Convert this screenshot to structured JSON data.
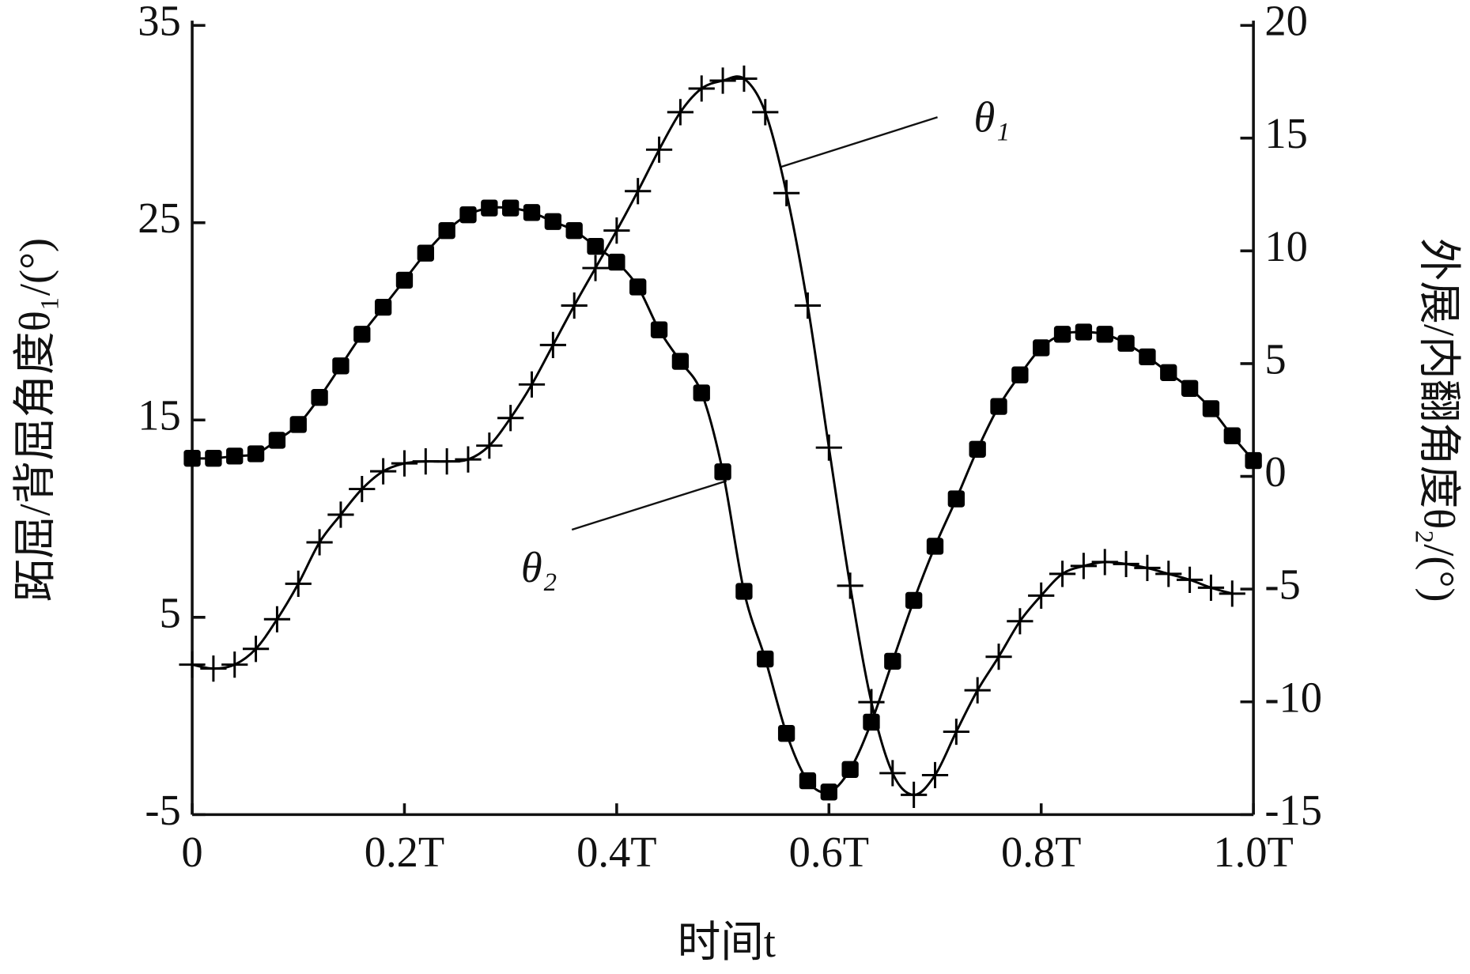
{
  "chart_data": {
    "type": "line",
    "x_label": "时间t",
    "y_label": "跖屈/背屈角度θ₁/(°)",
    "y2_label": "外展/内翻角度θ₂/(°)",
    "x": [
      0,
      0.02,
      0.04,
      0.06,
      0.08,
      0.1,
      0.12,
      0.14,
      0.16,
      0.18,
      0.2,
      0.22,
      0.24,
      0.26,
      0.28,
      0.3,
      0.32,
      0.34,
      0.36,
      0.38,
      0.4,
      0.42,
      0.44,
      0.46,
      0.48,
      0.5,
      0.52,
      0.54,
      0.56,
      0.58,
      0.6,
      0.62,
      0.64,
      0.66,
      0.68,
      0.7,
      0.72,
      0.74,
      0.76,
      0.78,
      0.8,
      0.82,
      0.84,
      0.86,
      0.88,
      0.9,
      0.92,
      0.94,
      0.96,
      0.98,
      1.0
    ],
    "xlim": [
      0,
      1.0
    ],
    "xticks": [
      0,
      {
        "value": 0.2,
        "label": "0.2T"
      },
      {
        "value": 0.4,
        "label": "0.4T"
      },
      {
        "value": 0.6,
        "label": "0.6T"
      },
      {
        "value": 0.8,
        "label": "0.8T"
      },
      {
        "value": 1.0,
        "label": "1.0T"
      }
    ],
    "ylim": [
      -5,
      35
    ],
    "yticks": [
      -5,
      5,
      15,
      25,
      35
    ],
    "y2lim": [
      -15,
      20
    ],
    "y2ticks": [
      -15,
      -10,
      -5,
      0,
      5,
      10,
      15,
      20
    ],
    "series": [
      {
        "name": "θ₁",
        "color": "#000000",
        "marker": "plus",
        "values": [
          2.6,
          2.4,
          2.6,
          3.4,
          4.9,
          6.7,
          8.8,
          10.2,
          11.5,
          12.4,
          12.8,
          12.9,
          12.9,
          13.0,
          13.7,
          15.1,
          16.8,
          18.8,
          20.8,
          22.7,
          24.6,
          26.6,
          28.7,
          30.6,
          31.8,
          32.2,
          32.3,
          30.6,
          26.5,
          20.8,
          13.6,
          6.6,
          0.7,
          -2.9,
          -4.0,
          -3.0,
          -0.8,
          1.3,
          3.0,
          4.8,
          6.1,
          7.2,
          7.6,
          7.8,
          7.7,
          7.5,
          7.2,
          6.9,
          6.5,
          6.2,
          null
        ]
      },
      {
        "name": "θ₂",
        "color": "#000000",
        "marker": "square",
        "axis": "y2",
        "values": [
          0.8,
          0.8,
          0.9,
          1.0,
          1.6,
          2.3,
          3.5,
          4.9,
          6.3,
          7.5,
          8.7,
          9.9,
          10.9,
          11.6,
          11.9,
          11.9,
          11.7,
          11.3,
          10.9,
          10.2,
          9.5,
          8.4,
          6.5,
          5.1,
          3.7,
          0.2,
          -5.1,
          -8.1,
          -11.4,
          -13.5,
          -14.0,
          -13.0,
          -10.9,
          -8.2,
          -5.5,
          -3.1,
          -1.0,
          1.2,
          3.1,
          4.5,
          5.7,
          6.3,
          6.4,
          6.3,
          5.9,
          5.3,
          4.6,
          3.9,
          3.0,
          1.8,
          0.7
        ]
      }
    ]
  }
}
